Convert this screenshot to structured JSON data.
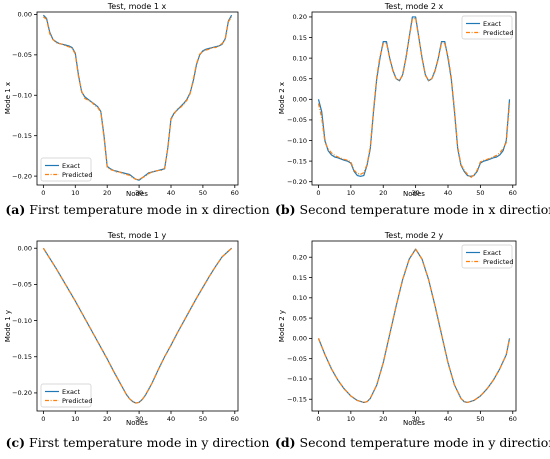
{
  "colors": {
    "exact": "#1f77b4",
    "predicted": "#ff7f0e"
  },
  "chart_data": [
    {
      "id": "a",
      "type": "line",
      "title": "Test, mode 1 x",
      "xlabel": "Nodes",
      "ylabel": "Mode 1 x",
      "xlim": [
        -2,
        61
      ],
      "ylim": [
        -0.211,
        0.003
      ],
      "xticks": [
        0,
        10,
        20,
        30,
        40,
        50,
        60
      ],
      "xtick_labels": [
        "0",
        "10",
        "20",
        "30",
        "40",
        "50",
        "60"
      ],
      "yticks": [
        0.0,
        -0.05,
        -0.1,
        -0.15,
        -0.2
      ],
      "ytick_labels": [
        "0.00",
        "−0.05",
        "−0.10",
        "−0.15",
        "−0.20"
      ],
      "legend": {
        "position": "lower-left",
        "entries": [
          "Exact",
          "Predicted"
        ]
      },
      "caption": {
        "label": "(a)",
        "text": " First temperature mode in x direction"
      },
      "series": [
        {
          "name": "Exact",
          "style": "solid",
          "x": [
            0,
            1,
            2,
            3,
            4,
            5,
            6,
            7,
            8,
            9,
            10,
            11,
            12,
            13,
            14,
            15,
            16,
            17,
            18,
            19,
            20,
            21,
            22,
            23,
            24,
            25,
            26,
            27,
            28,
            29,
            30,
            31,
            32,
            33,
            34,
            35,
            36,
            37,
            38,
            39,
            40,
            41,
            42,
            43,
            44,
            45,
            46,
            47,
            48,
            49,
            50,
            51,
            52,
            53,
            54,
            55,
            56,
            57,
            58,
            59
          ],
          "y": [
            -0.001,
            -0.005,
            -0.022,
            -0.031,
            -0.034,
            -0.036,
            -0.037,
            -0.038,
            -0.039,
            -0.041,
            -0.048,
            -0.075,
            -0.096,
            -0.102,
            -0.105,
            -0.108,
            -0.111,
            -0.114,
            -0.12,
            -0.15,
            -0.188,
            -0.191,
            -0.193,
            -0.194,
            -0.195,
            -0.196,
            -0.197,
            -0.198,
            -0.201,
            -0.204,
            -0.205,
            -0.202,
            -0.199,
            -0.196,
            -0.195,
            -0.194,
            -0.193,
            -0.192,
            -0.191,
            -0.165,
            -0.129,
            -0.122,
            -0.118,
            -0.114,
            -0.11,
            -0.105,
            -0.097,
            -0.082,
            -0.062,
            -0.05,
            -0.045,
            -0.043,
            -0.042,
            -0.041,
            -0.04,
            -0.039,
            -0.037,
            -0.03,
            -0.008,
            -0.001
          ]
        },
        {
          "name": "Predicted",
          "style": "dashdot",
          "x": [
            0,
            1,
            2,
            3,
            4,
            5,
            6,
            7,
            8,
            9,
            10,
            11,
            12,
            13,
            14,
            15,
            16,
            17,
            18,
            19,
            20,
            21,
            22,
            23,
            24,
            25,
            26,
            27,
            28,
            29,
            30,
            31,
            32,
            33,
            34,
            35,
            36,
            37,
            38,
            39,
            40,
            41,
            42,
            43,
            44,
            45,
            46,
            47,
            48,
            49,
            50,
            51,
            52,
            53,
            54,
            55,
            56,
            57,
            58,
            59
          ],
          "y": [
            -0.003,
            -0.006,
            -0.024,
            -0.031,
            -0.035,
            -0.036,
            -0.037,
            -0.039,
            -0.04,
            -0.042,
            -0.049,
            -0.077,
            -0.095,
            -0.104,
            -0.106,
            -0.108,
            -0.112,
            -0.115,
            -0.121,
            -0.152,
            -0.189,
            -0.192,
            -0.193,
            -0.195,
            -0.195,
            -0.197,
            -0.198,
            -0.199,
            -0.202,
            -0.204,
            -0.204,
            -0.202,
            -0.2,
            -0.197,
            -0.195,
            -0.194,
            -0.193,
            -0.193,
            -0.19,
            -0.166,
            -0.13,
            -0.123,
            -0.117,
            -0.115,
            -0.111,
            -0.106,
            -0.098,
            -0.08,
            -0.061,
            -0.049,
            -0.046,
            -0.044,
            -0.043,
            -0.041,
            -0.041,
            -0.039,
            -0.036,
            -0.031,
            -0.009,
            -0.003
          ]
        }
      ]
    },
    {
      "id": "b",
      "type": "line",
      "title": "Test, mode 2 x",
      "xlabel": "Nodes",
      "ylabel": "Mode 2 x",
      "xlim": [
        -2,
        61
      ],
      "ylim": [
        -0.208,
        0.212
      ],
      "xticks": [
        0,
        10,
        20,
        30,
        40,
        50,
        60
      ],
      "xtick_labels": [
        "0",
        "10",
        "20",
        "30",
        "40",
        "50",
        "60"
      ],
      "yticks": [
        0.2,
        0.15,
        0.1,
        0.05,
        0.0,
        -0.05,
        -0.1,
        -0.15,
        -0.2
      ],
      "ytick_labels": [
        "0.20",
        "0.15",
        "0.10",
        "0.05",
        "0.00",
        "−0.05",
        "−0.10",
        "−0.15",
        "−0.20"
      ],
      "legend": {
        "position": "top-right",
        "entries": [
          "Exact",
          "Predicted"
        ]
      },
      "caption": {
        "label": "(b)",
        "text": " Second temperature mode in x direction"
      },
      "series": [
        {
          "name": "Exact",
          "style": "solid",
          "x": [
            0,
            1,
            2,
            3,
            4,
            5,
            6,
            7,
            8,
            9,
            10,
            11,
            12,
            13,
            14,
            15,
            16,
            17,
            18,
            19,
            20,
            21,
            22,
            23,
            24,
            25,
            26,
            27,
            28,
            29,
            30,
            31,
            32,
            33,
            34,
            35,
            36,
            37,
            38,
            39,
            40,
            41,
            42,
            43,
            44,
            45,
            46,
            47,
            48,
            49,
            50,
            51,
            52,
            53,
            54,
            55,
            56,
            57,
            58,
            59
          ],
          "y": [
            0.0,
            -0.03,
            -0.1,
            -0.125,
            -0.135,
            -0.14,
            -0.142,
            -0.145,
            -0.148,
            -0.15,
            -0.155,
            -0.175,
            -0.185,
            -0.187,
            -0.185,
            -0.16,
            -0.12,
            -0.03,
            0.05,
            0.1,
            0.14,
            0.14,
            0.1,
            0.07,
            0.05,
            0.045,
            0.06,
            0.1,
            0.15,
            0.2,
            0.2,
            0.15,
            0.1,
            0.06,
            0.045,
            0.05,
            0.07,
            0.1,
            0.14,
            0.14,
            0.1,
            0.05,
            -0.03,
            -0.12,
            -0.16,
            -0.175,
            -0.185,
            -0.187,
            -0.185,
            -0.175,
            -0.155,
            -0.15,
            -0.148,
            -0.145,
            -0.142,
            -0.14,
            -0.135,
            -0.125,
            -0.1,
            0.0
          ]
        },
        {
          "name": "Predicted",
          "style": "dashdot",
          "x": [
            0,
            1,
            2,
            3,
            4,
            5,
            6,
            7,
            8,
            9,
            10,
            11,
            12,
            13,
            14,
            15,
            16,
            17,
            18,
            19,
            20,
            21,
            22,
            23,
            24,
            25,
            26,
            27,
            28,
            29,
            30,
            31,
            32,
            33,
            34,
            35,
            36,
            37,
            38,
            39,
            40,
            41,
            42,
            43,
            44,
            45,
            46,
            47,
            48,
            49,
            50,
            51,
            52,
            53,
            54,
            55,
            56,
            57,
            58,
            59
          ],
          "y": [
            -0.01,
            -0.045,
            -0.105,
            -0.12,
            -0.13,
            -0.136,
            -0.14,
            -0.143,
            -0.146,
            -0.148,
            -0.152,
            -0.172,
            -0.18,
            -0.182,
            -0.178,
            -0.158,
            -0.115,
            -0.025,
            0.055,
            0.105,
            0.135,
            0.137,
            0.098,
            0.068,
            0.05,
            0.046,
            0.058,
            0.098,
            0.148,
            0.195,
            0.197,
            0.148,
            0.098,
            0.058,
            0.046,
            0.05,
            0.068,
            0.098,
            0.137,
            0.135,
            0.105,
            0.055,
            -0.025,
            -0.115,
            -0.158,
            -0.172,
            -0.182,
            -0.19,
            -0.184,
            -0.172,
            -0.152,
            -0.148,
            -0.146,
            -0.143,
            -0.14,
            -0.136,
            -0.13,
            -0.12,
            -0.105,
            -0.01
          ]
        }
      ]
    },
    {
      "id": "c",
      "type": "line",
      "title": "Test, mode 1 y",
      "xlabel": "Nodes",
      "ylabel": "Mode 1 y",
      "xlim": [
        -2,
        61
      ],
      "ylim": [
        -0.225,
        0.01
      ],
      "xticks": [
        0,
        10,
        20,
        30,
        40,
        50,
        60
      ],
      "xtick_labels": [
        "0",
        "10",
        "20",
        "30",
        "40",
        "50",
        "60"
      ],
      "yticks": [
        0.0,
        -0.05,
        -0.1,
        -0.15,
        -0.2
      ],
      "ytick_labels": [
        "0.00",
        "−0.05",
        "−0.10",
        "−0.15",
        "−0.20"
      ],
      "legend": {
        "position": "lower-left",
        "entries": [
          "Exact",
          "Predicted"
        ]
      },
      "caption": {
        "label": "(c)",
        "text": " First temperature mode in y direction"
      },
      "series": [
        {
          "name": "Exact",
          "style": "solid",
          "x": [
            0,
            2,
            4,
            6,
            8,
            10,
            12,
            14,
            16,
            18,
            20,
            22,
            24,
            26,
            27,
            28,
            29,
            30,
            31,
            32,
            33,
            34,
            36,
            38,
            40,
            42,
            44,
            46,
            48,
            50,
            52,
            54,
            56,
            58,
            59
          ],
          "y": [
            0.0,
            -0.014,
            -0.028,
            -0.043,
            -0.058,
            -0.073,
            -0.089,
            -0.105,
            -0.121,
            -0.137,
            -0.153,
            -0.17,
            -0.186,
            -0.202,
            -0.208,
            -0.212,
            -0.214,
            -0.213,
            -0.209,
            -0.203,
            -0.195,
            -0.187,
            -0.168,
            -0.15,
            -0.134,
            -0.117,
            -0.101,
            -0.085,
            -0.069,
            -0.054,
            -0.039,
            -0.025,
            -0.012,
            -0.004,
            0.0
          ]
        },
        {
          "name": "Predicted",
          "style": "dashdot",
          "x": [
            0,
            2,
            4,
            6,
            8,
            10,
            12,
            14,
            16,
            18,
            20,
            22,
            24,
            26,
            27,
            28,
            29,
            30,
            31,
            32,
            33,
            34,
            36,
            38,
            40,
            42,
            44,
            46,
            48,
            50,
            52,
            54,
            56,
            58,
            59
          ],
          "y": [
            0.0,
            -0.014,
            -0.028,
            -0.043,
            -0.058,
            -0.073,
            -0.089,
            -0.105,
            -0.121,
            -0.137,
            -0.153,
            -0.17,
            -0.186,
            -0.202,
            -0.208,
            -0.212,
            -0.214,
            -0.213,
            -0.209,
            -0.203,
            -0.195,
            -0.187,
            -0.168,
            -0.15,
            -0.134,
            -0.117,
            -0.101,
            -0.085,
            -0.069,
            -0.054,
            -0.039,
            -0.025,
            -0.012,
            -0.004,
            0.0
          ]
        }
      ]
    },
    {
      "id": "d",
      "type": "line",
      "title": "Test, mode 2 y",
      "xlabel": "Nodes",
      "ylabel": "Mode 2 y",
      "xlim": [
        -2,
        61
      ],
      "ylim": [
        -0.179,
        0.24
      ],
      "xticks": [
        0,
        10,
        20,
        30,
        40,
        50,
        60
      ],
      "xtick_labels": [
        "0",
        "10",
        "20",
        "30",
        "40",
        "50",
        "60"
      ],
      "yticks": [
        0.2,
        0.15,
        0.1,
        0.05,
        0.0,
        -0.05,
        -0.1,
        -0.15
      ],
      "ytick_labels": [
        "0.20",
        "0.15",
        "0.10",
        "0.05",
        "0.00",
        "−0.05",
        "−0.10",
        "−0.15"
      ],
      "legend": {
        "position": "top-right",
        "entries": [
          "Exact",
          "Predicted"
        ]
      },
      "caption": {
        "label": "(d)",
        "text": " Second temperature mode in y direction"
      },
      "series": [
        {
          "name": "Exact",
          "style": "solid",
          "x": [
            0,
            2,
            4,
            6,
            8,
            10,
            12,
            14,
            15,
            16,
            18,
            20,
            22,
            24,
            26,
            28,
            30,
            32,
            34,
            36,
            38,
            40,
            42,
            44,
            45,
            46,
            48,
            50,
            52,
            54,
            56,
            58,
            59
          ],
          "y": [
            0.0,
            -0.04,
            -0.075,
            -0.103,
            -0.125,
            -0.142,
            -0.153,
            -0.158,
            -0.156,
            -0.148,
            -0.115,
            -0.06,
            0.01,
            0.08,
            0.145,
            0.195,
            0.22,
            0.195,
            0.145,
            0.08,
            0.01,
            -0.06,
            -0.115,
            -0.148,
            -0.156,
            -0.158,
            -0.153,
            -0.142,
            -0.125,
            -0.103,
            -0.075,
            -0.04,
            0.0
          ]
        },
        {
          "name": "Predicted",
          "style": "dashdot",
          "x": [
            0,
            2,
            4,
            6,
            8,
            10,
            12,
            14,
            15,
            16,
            18,
            20,
            22,
            24,
            26,
            28,
            30,
            32,
            34,
            36,
            38,
            40,
            42,
            44,
            45,
            46,
            48,
            50,
            52,
            54,
            56,
            58,
            59
          ],
          "y": [
            0.0,
            -0.04,
            -0.075,
            -0.103,
            -0.125,
            -0.142,
            -0.153,
            -0.158,
            -0.156,
            -0.148,
            -0.115,
            -0.06,
            0.01,
            0.08,
            0.145,
            0.195,
            0.22,
            0.195,
            0.145,
            0.08,
            0.01,
            -0.06,
            -0.115,
            -0.148,
            -0.156,
            -0.158,
            -0.153,
            -0.142,
            -0.125,
            -0.103,
            -0.075,
            -0.04,
            0.0
          ]
        }
      ]
    }
  ]
}
